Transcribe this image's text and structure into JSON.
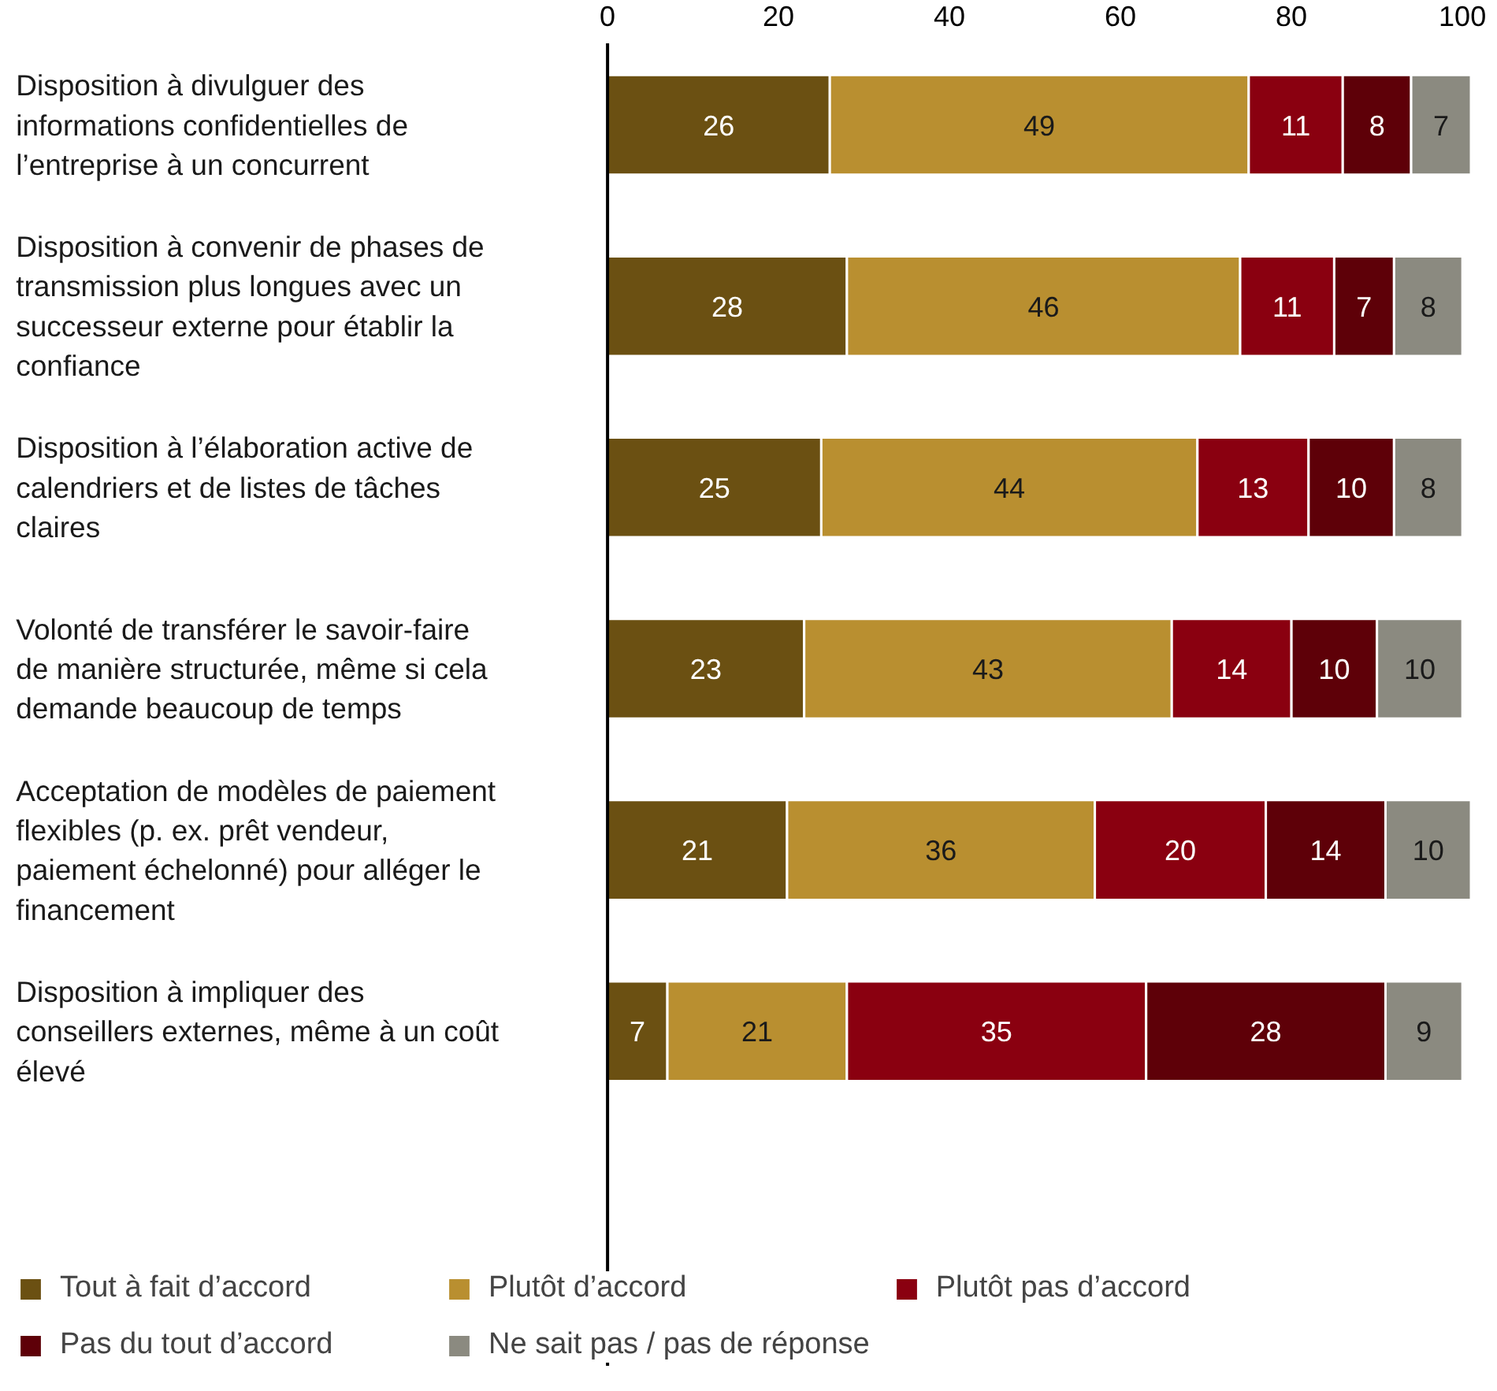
{
  "chart_data": {
    "type": "bar",
    "orientation": "horizontal",
    "stacked": true,
    "data_labels": true,
    "legend": "bottom",
    "grid": false,
    "categories": [
      "Disposition à divulguer des informations confidentielles de l’entreprise à un concurrent",
      "Disposition à convenir de phases de transmission plus longues avec un successeur externe pour établir la confiance",
      "Disposition à l’élaboration active de calendriers et de listes de tâches claires",
      "Volonté de transférer le savoir-faire de manière structurée, même si cela demande beaucoup de temps",
      "Acceptation de modèles de paiement flexibles (p. ex. prêt vendeur, paiement échelonné) pour alléger le financement",
      "Disposition à impliquer des conseillers externes, même à un coût élevé"
    ],
    "xlim": [
      0,
      101
    ],
    "xticks": [
      0,
      20,
      40,
      60,
      80,
      100
    ],
    "series": [
      {
        "name": "Tout à fait d’accord",
        "color": "#6b5012",
        "values": [
          26,
          28,
          25,
          23,
          21,
          7
        ]
      },
      {
        "name": "Plutôt d’accord",
        "color": "#b98f30",
        "values": [
          49,
          46,
          44,
          43,
          36,
          21
        ]
      },
      {
        "name": "Plutôt pas d’accord",
        "color": "#8a0010",
        "values": [
          11,
          11,
          13,
          14,
          20,
          35
        ]
      },
      {
        "name": "Pas du tout d’accord",
        "color": "#5e0008",
        "values": [
          8,
          7,
          10,
          10,
          14,
          28
        ]
      },
      {
        "name": "Ne sait pas / pas de réponse",
        "color": "#8b8a80",
        "values": [
          7,
          8,
          8,
          10,
          10,
          9
        ]
      }
    ]
  }
}
